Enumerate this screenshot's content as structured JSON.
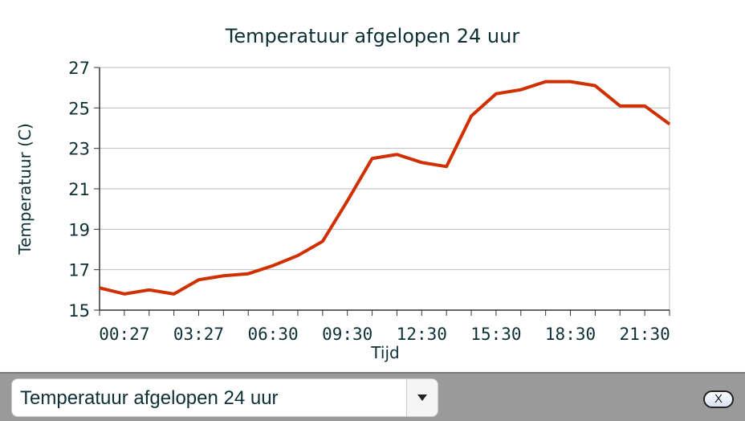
{
  "chart_data": {
    "type": "line",
    "title": "Temperatuur afgelopen 24 uur",
    "xlabel": "Tijd",
    "ylabel": "Temperatuur (C)",
    "ylim": [
      15,
      27
    ],
    "yticks": [
      "15",
      "17",
      "19",
      "21",
      "23",
      "25",
      "27"
    ],
    "xtick_labels": [
      {
        "index": 1,
        "label": "00:27"
      },
      {
        "index": 4,
        "label": "03:27"
      },
      {
        "index": 7,
        "label": "06:30"
      },
      {
        "index": 10,
        "label": "09:30"
      },
      {
        "index": 13,
        "label": "12:30"
      },
      {
        "index": 16,
        "label": "15:30"
      },
      {
        "index": 19,
        "label": "18:30"
      },
      {
        "index": 22,
        "label": "21:30"
      }
    ],
    "grid": true,
    "series": [
      {
        "color": "#d03000",
        "values": [
          16.1,
          15.8,
          16.0,
          15.8,
          16.5,
          16.7,
          16.8,
          17.2,
          17.7,
          18.4,
          20.4,
          22.5,
          22.7,
          22.3,
          22.1,
          24.6,
          25.7,
          25.9,
          26.3,
          26.3,
          26.1,
          25.1,
          25.1,
          24.2
        ]
      }
    ]
  },
  "controls": {
    "select_value": "Temperatuur afgelopen 24 uur",
    "close_label": "X"
  }
}
